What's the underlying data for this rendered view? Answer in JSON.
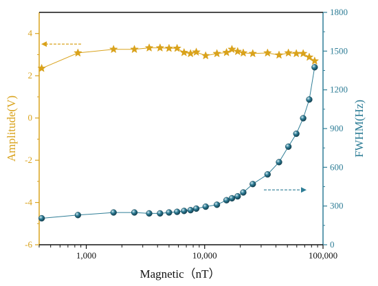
{
  "chart_data": {
    "type": "scatter",
    "title": "",
    "x_axis": {
      "label": "Magnetic（nT）",
      "scale": "log",
      "range": [
        400,
        100000
      ],
      "ticks": [
        1000,
        10000,
        100000
      ],
      "tick_labels": [
        "1,000",
        "10,000",
        "100,000"
      ]
    },
    "y_left": {
      "label": "Amplitude(V)",
      "range": [
        -6,
        5
      ],
      "ticks": [
        -6,
        -4,
        -2,
        0,
        2,
        4
      ],
      "tick_labels": [
        "-6",
        "-4",
        "-2",
        "0",
        "2",
        "4"
      ],
      "color": "#D9A21B"
    },
    "y_right": {
      "label": "FWHM(Hz)",
      "range": [
        0,
        1800
      ],
      "ticks": [
        0,
        300,
        600,
        900,
        1200,
        1500,
        1800
      ],
      "tick_labels": [
        "0",
        "300",
        "600",
        "900",
        "1200",
        "1500",
        "1800"
      ],
      "color": "#2E7D96"
    },
    "legend": "none",
    "grid": false,
    "series": [
      {
        "axis": "left",
        "marker": "star",
        "color": "#D9A21B",
        "points": [
          [
            420,
            2.35
          ],
          [
            850,
            3.08
          ],
          [
            1700,
            3.25
          ],
          [
            2550,
            3.25
          ],
          [
            3400,
            3.32
          ],
          [
            4200,
            3.32
          ],
          [
            5000,
            3.3
          ],
          [
            5850,
            3.3
          ],
          [
            6700,
            3.1
          ],
          [
            7600,
            3.05
          ],
          [
            8500,
            3.12
          ],
          [
            10200,
            2.95
          ],
          [
            12700,
            3.05
          ],
          [
            15300,
            3.1
          ],
          [
            17000,
            3.25
          ],
          [
            19000,
            3.15
          ],
          [
            21200,
            3.08
          ],
          [
            25500,
            3.05
          ],
          [
            34000,
            3.08
          ],
          [
            42500,
            2.98
          ],
          [
            51000,
            3.08
          ],
          [
            59500,
            3.05
          ],
          [
            68000,
            3.05
          ],
          [
            76500,
            2.88
          ],
          [
            85000,
            2.7
          ]
        ]
      },
      {
        "axis": "right",
        "marker": "sphere",
        "color": "#2E7D96",
        "points": [
          [
            420,
            205
          ],
          [
            850,
            230
          ],
          [
            1700,
            250
          ],
          [
            2550,
            250
          ],
          [
            3400,
            243
          ],
          [
            4200,
            243
          ],
          [
            5000,
            250
          ],
          [
            5850,
            255
          ],
          [
            6700,
            262
          ],
          [
            7600,
            268
          ],
          [
            8500,
            280
          ],
          [
            10200,
            295
          ],
          [
            12700,
            310
          ],
          [
            15300,
            345
          ],
          [
            17000,
            360
          ],
          [
            19000,
            375
          ],
          [
            21200,
            405
          ],
          [
            25500,
            470
          ],
          [
            34000,
            545
          ],
          [
            42500,
            640
          ],
          [
            51000,
            760
          ],
          [
            59500,
            860
          ],
          [
            68000,
            980
          ],
          [
            76500,
            1125
          ],
          [
            85000,
            1375
          ]
        ]
      }
    ]
  }
}
